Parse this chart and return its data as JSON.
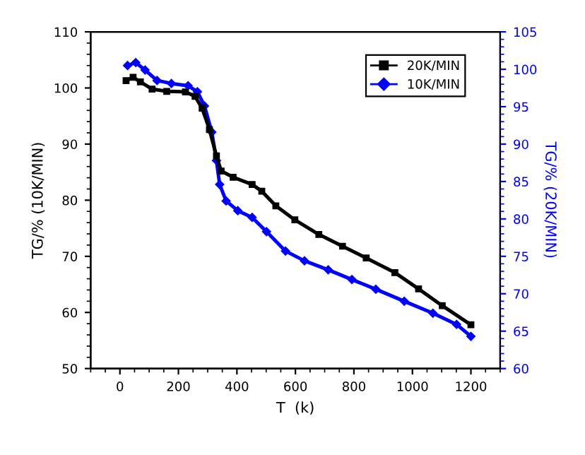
{
  "chart_data": {
    "type": "line",
    "xlabel": "T  (k)",
    "ylabel": "TG/% (10K/MIN)",
    "y2label": "TG/% (20K/MIN)",
    "xlim": [
      -100,
      1300
    ],
    "xticks": [
      0,
      200,
      400,
      600,
      800,
      1000,
      1200
    ],
    "ylim": [
      50,
      110
    ],
    "yticks": [
      50,
      60,
      70,
      80,
      90,
      100,
      110
    ],
    "y2lim": [
      60,
      105
    ],
    "y2ticks": [
      60,
      65,
      70,
      75,
      80,
      85,
      90,
      95,
      100,
      105
    ],
    "legend": "top right",
    "grid": false,
    "series": [
      {
        "name": "20K/MIN",
        "color": "#000000",
        "marker": "square",
        "x": [
          21,
          45,
          70,
          110,
          160,
          224,
          257,
          281,
          306,
          330,
          346,
          387,
          452,
          485,
          533,
          598,
          680,
          761,
          842,
          940,
          1021,
          1102,
          1200
        ],
        "values": [
          101.3,
          101.9,
          101.1,
          99.8,
          99.4,
          99.3,
          98.5,
          96.4,
          92.6,
          87.9,
          85.2,
          84.1,
          82.8,
          81.6,
          79.0,
          76.5,
          73.9,
          71.8,
          69.7,
          67.1,
          64.2,
          61.2,
          57.8
        ]
      },
      {
        "name": "10K/MIN",
        "color": "#0000ff",
        "marker": "diamond",
        "axis": "y2",
        "x": [
          26,
          54,
          86,
          127,
          176,
          233,
          265,
          289,
          314,
          330,
          341,
          363,
          403,
          452,
          501,
          566,
          631,
          712,
          793,
          875,
          972,
          1070,
          1151,
          1200
        ],
        "values": [
          100.5,
          100.9,
          99.9,
          98.5,
          98.1,
          97.8,
          97.0,
          95.1,
          91.6,
          87.8,
          84.6,
          82.4,
          81.1,
          80.2,
          78.3,
          75.7,
          74.4,
          73.2,
          71.9,
          70.6,
          69.0,
          67.4,
          65.9,
          64.3
        ]
      }
    ]
  }
}
